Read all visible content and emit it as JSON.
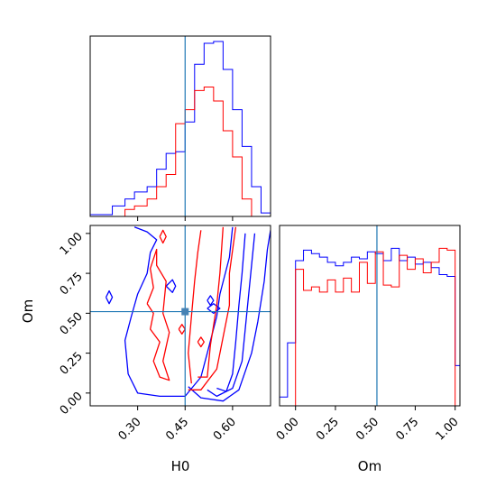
{
  "chart_data": {
    "type": "corner",
    "parameters": [
      "H0",
      "Om"
    ],
    "truths": {
      "H0": 0.45,
      "Om": 0.51
    },
    "colors": {
      "series_a": "#0000ff",
      "series_b": "#ff0000",
      "truth": "#1f77b4"
    },
    "panels": [
      {
        "id": "hist-H0",
        "type": "histogram",
        "xlim": [
          0.15,
          0.72
        ],
        "xticks": [
          0.3,
          0.45,
          0.6
        ],
        "show_tick_labels": false,
        "truth": 0.45,
        "series": [
          {
            "color": "#0000ff",
            "edges": [
              0.15,
              0.19,
              0.22,
              0.26,
              0.29,
              0.33,
              0.36,
              0.39,
              0.42,
              0.45,
              0.48,
              0.51,
              0.54,
              0.57,
              0.6,
              0.63,
              0.66,
              0.69,
              0.72
            ],
            "counts": [
              0.01,
              0.01,
              0.06,
              0.1,
              0.14,
              0.17,
              0.27,
              0.36,
              0.37,
              0.54,
              0.87,
              0.99,
              1.0,
              0.84,
              0.61,
              0.4,
              0.17,
              0.02
            ]
          },
          {
            "color": "#ff0000",
            "edges": [
              0.15,
              0.19,
              0.22,
              0.26,
              0.29,
              0.33,
              0.36,
              0.39,
              0.42,
              0.45,
              0.48,
              0.51,
              0.54,
              0.57,
              0.6,
              0.63,
              0.66,
              0.69,
              0.72
            ],
            "counts": [
              0,
              0,
              0,
              0.04,
              0.06,
              0.1,
              0.17,
              0.24,
              0.53,
              0.61,
              0.72,
              0.74,
              0.66,
              0.49,
              0.34,
              0.1,
              0,
              0
            ]
          }
        ]
      },
      {
        "id": "contour-H0-Om",
        "type": "contour",
        "xlim": [
          0.15,
          0.72
        ],
        "ylim": [
          -0.08,
          1.05
        ],
        "xticks": [
          0.3,
          0.45,
          0.6
        ],
        "xtick_labels": [
          "0.30",
          "0.45",
          "0.60"
        ],
        "yticks": [
          0.0,
          0.25,
          0.5,
          0.75,
          1.0
        ],
        "ytick_labels": [
          "0.00",
          "0.25",
          "0.50",
          "0.75",
          "1.00"
        ],
        "xlabel": "H0",
        "ylabel": "Om",
        "truth": [
          0.45,
          0.51
        ],
        "series": [
          {
            "color": "#0000ff",
            "contours": [
              [
                [
                  0.29,
                  1.04
                ],
                [
                  0.33,
                  1.01
                ],
                [
                  0.36,
                  0.96
                ],
                [
                  0.34,
                  0.88
                ],
                [
                  0.33,
                  0.75
                ],
                [
                  0.3,
                  0.62
                ],
                [
                  0.28,
                  0.48
                ],
                [
                  0.26,
                  0.33
                ],
                [
                  0.27,
                  0.12
                ],
                [
                  0.3,
                  0.0
                ],
                [
                  0.37,
                  -0.02
                ],
                [
                  0.45,
                  -0.02
                ],
                [
                  0.5,
                  0.1
                ],
                [
                  0.52,
                  0.25
                ],
                [
                  0.55,
                  0.48
                ],
                [
                  0.56,
                  0.62
                ],
                [
                  0.59,
                  0.85
                ],
                [
                  0.6,
                  1.04
                ]
              ],
              [
                [
                  0.46,
                  0.04
                ],
                [
                  0.5,
                  -0.03
                ],
                [
                  0.57,
                  -0.05
                ],
                [
                  0.62,
                  0.02
                ],
                [
                  0.66,
                  0.25
                ],
                [
                  0.68,
                  0.45
                ],
                [
                  0.7,
                  0.7
                ],
                [
                  0.71,
                  0.9
                ],
                [
                  0.72,
                  1.02
                ]
              ],
              [
                [
                  0.52,
                  0.02
                ],
                [
                  0.55,
                  -0.02
                ],
                [
                  0.6,
                  0.03
                ],
                [
                  0.63,
                  0.2
                ],
                [
                  0.64,
                  0.4
                ],
                [
                  0.65,
                  0.6
                ],
                [
                  0.66,
                  0.8
                ],
                [
                  0.67,
                  1.0
                ]
              ],
              [
                [
                  0.55,
                  0.03
                ],
                [
                  0.58,
                  0.01
                ],
                [
                  0.6,
                  0.12
                ],
                [
                  0.61,
                  0.32
                ],
                [
                  0.62,
                  0.55
                ],
                [
                  0.63,
                  0.75
                ],
                [
                  0.64,
                  1.0
                ]
              ],
              [
                [
                  0.39,
                  0.67
                ],
                [
                  0.41,
                  0.63
                ],
                [
                  0.42,
                  0.67
                ],
                [
                  0.41,
                  0.71
                ],
                [
                  0.39,
                  0.67
                ]
              ],
              [
                [
                  0.52,
                  0.53
                ],
                [
                  0.54,
                  0.5
                ],
                [
                  0.56,
                  0.53
                ],
                [
                  0.54,
                  0.56
                ],
                [
                  0.52,
                  0.53
                ]
              ],
              [
                [
                  0.2,
                  0.6
                ],
                [
                  0.21,
                  0.56
                ],
                [
                  0.22,
                  0.6
                ],
                [
                  0.21,
                  0.64
                ],
                [
                  0.2,
                  0.6
                ]
              ],
              [
                [
                  0.52,
                  0.58
                ],
                [
                  0.53,
                  0.55
                ],
                [
                  0.54,
                  0.58
                ],
                [
                  0.53,
                  0.61
                ],
                [
                  0.52,
                  0.58
                ]
              ]
            ]
          },
          {
            "color": "#ff0000",
            "contours": [
              [
                [
                  0.33,
                  0.56
                ],
                [
                  0.35,
                  0.5
                ],
                [
                  0.34,
                  0.4
                ],
                [
                  0.37,
                  0.32
                ],
                [
                  0.35,
                  0.2
                ],
                [
                  0.37,
                  0.1
                ],
                [
                  0.4,
                  0.08
                ],
                [
                  0.38,
                  0.2
                ],
                [
                  0.4,
                  0.38
                ],
                [
                  0.38,
                  0.5
                ],
                [
                  0.39,
                  0.7
                ],
                [
                  0.36,
                  0.8
                ],
                [
                  0.36,
                  0.9
                ],
                [
                  0.34,
                  0.78
                ],
                [
                  0.35,
                  0.66
                ],
                [
                  0.33,
                  0.56
                ]
              ],
              [
                [
                  0.46,
                  0.02
                ],
                [
                  0.5,
                  0.02
                ],
                [
                  0.55,
                  0.15
                ],
                [
                  0.57,
                  0.35
                ],
                [
                  0.59,
                  0.55
                ],
                [
                  0.59,
                  0.75
                ],
                [
                  0.61,
                  1.04
                ]
              ],
              [
                [
                  0.49,
                  0.1
                ],
                [
                  0.52,
                  0.1
                ],
                [
                  0.53,
                  0.3
                ],
                [
                  0.55,
                  0.55
                ],
                [
                  0.56,
                  0.75
                ],
                [
                  0.57,
                  1.04
                ]
              ],
              [
                [
                  0.47,
                  0.06
                ],
                [
                  0.46,
                  0.25
                ],
                [
                  0.47,
                  0.48
                ],
                [
                  0.48,
                  0.7
                ],
                [
                  0.49,
                  0.88
                ],
                [
                  0.5,
                  1.02
                ]
              ],
              [
                [
                  0.37,
                  0.98
                ],
                [
                  0.38,
                  0.94
                ],
                [
                  0.39,
                  0.98
                ],
                [
                  0.38,
                  1.02
                ],
                [
                  0.37,
                  0.98
                ]
              ],
              [
                [
                  0.43,
                  0.4
                ],
                [
                  0.44,
                  0.37
                ],
                [
                  0.45,
                  0.4
                ],
                [
                  0.44,
                  0.43
                ],
                [
                  0.43,
                  0.4
                ]
              ],
              [
                [
                  0.49,
                  0.32
                ],
                [
                  0.5,
                  0.29
                ],
                [
                  0.51,
                  0.32
                ],
                [
                  0.5,
                  0.35
                ],
                [
                  0.49,
                  0.32
                ]
              ]
            ]
          }
        ]
      },
      {
        "id": "hist-Om",
        "type": "histogram",
        "xlim": [
          -0.1,
          1.03
        ],
        "xticks": [
          0.0,
          0.25,
          0.5,
          0.75,
          1.0
        ],
        "xtick_labels": [
          "0.00",
          "0.25",
          "0.50",
          "0.75",
          "1.00"
        ],
        "xlabel": "Om",
        "truth": 0.51,
        "series": [
          {
            "color": "#0000ff",
            "edges": [
              -0.1,
              -0.05,
              0.0,
              0.05,
              0.1,
              0.15,
              0.2,
              0.25,
              0.3,
              0.35,
              0.4,
              0.45,
              0.5,
              0.55,
              0.6,
              0.65,
              0.7,
              0.75,
              0.8,
              0.85,
              0.9,
              0.95,
              1.0,
              1.03
            ],
            "counts": [
              0.05,
              0.36,
              0.83,
              0.89,
              0.87,
              0.85,
              0.82,
              0.8,
              0.82,
              0.85,
              0.84,
              0.88,
              0.87,
              0.83,
              0.9,
              0.83,
              0.85,
              0.81,
              0.82,
              0.79,
              0.75,
              0.74,
              0.23
            ]
          },
          {
            "color": "#ff0000",
            "edges": [
              0.0,
              0.05,
              0.1,
              0.15,
              0.2,
              0.25,
              0.3,
              0.35,
              0.4,
              0.45,
              0.5,
              0.55,
              0.6,
              0.65,
              0.7,
              0.75,
              0.8,
              0.85,
              0.9,
              0.95,
              1.0
            ],
            "counts": [
              0.78,
              0.66,
              0.68,
              0.65,
              0.72,
              0.65,
              0.73,
              0.65,
              0.82,
              0.7,
              0.88,
              0.69,
              0.68,
              0.86,
              0.78,
              0.84,
              0.76,
              0.82,
              0.9,
              0.89
            ]
          }
        ]
      }
    ]
  }
}
